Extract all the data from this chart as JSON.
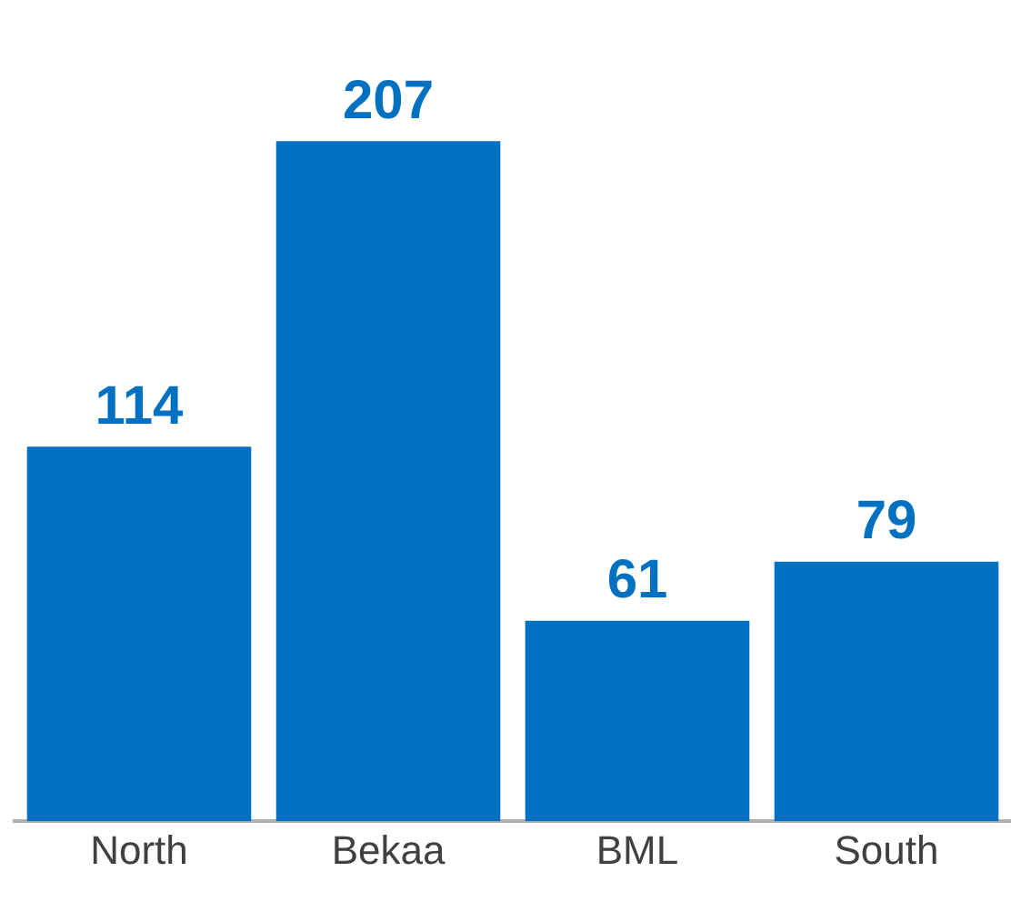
{
  "chart_data": {
    "type": "bar",
    "categories": [
      "North",
      "Bekaa",
      "BML",
      "South"
    ],
    "values": [
      114,
      207,
      61,
      79
    ],
    "color": "#0070c0",
    "data_labels": true,
    "grid": false,
    "legend": false
  }
}
